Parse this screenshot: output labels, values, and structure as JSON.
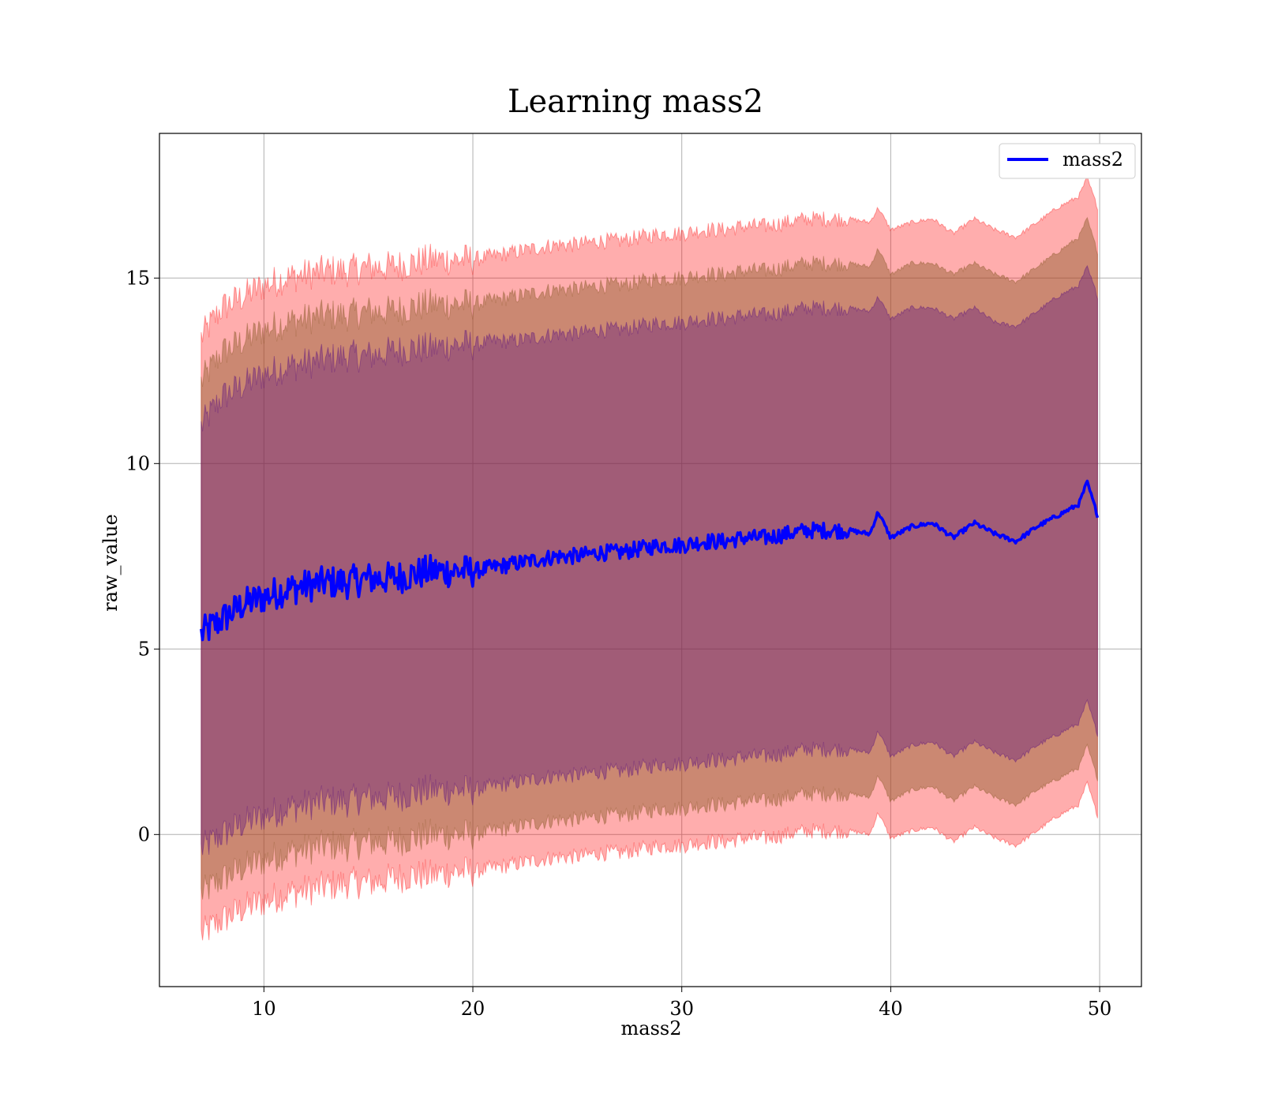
{
  "chart_data": {
    "type": "area",
    "title": "Learning mass2",
    "xlabel": "mass2",
    "ylabel": "raw_value",
    "xlim": [
      5,
      52
    ],
    "ylim": [
      -4.1,
      18.9
    ],
    "xticks": [
      10,
      20,
      30,
      40,
      50
    ],
    "yticks": [
      0,
      5,
      10,
      15
    ],
    "grid": true,
    "legend": {
      "position": "top-right",
      "entries": [
        "mass2"
      ]
    },
    "colors": {
      "line": "#0000ff",
      "band_outer": "#ff0000",
      "band_middle": "#8b5a2b",
      "band_inner": "#4b0082"
    },
    "x_range": [
      7.0,
      49.9
    ],
    "series": [
      {
        "name": "mass2",
        "x": [
          7.0,
          8.0,
          9.0,
          10.0,
          11.0,
          12.0,
          13.0,
          14.0,
          15.0,
          16.0,
          17.0,
          18.0,
          19.0,
          20.0,
          21.0,
          22.0,
          23.0,
          24.0,
          25.0,
          26.0,
          27.0,
          28.0,
          29.0,
          30.0,
          31.0,
          32.0,
          33.0,
          34.0,
          35.0,
          36.0,
          37.0,
          38.0,
          39.0,
          39.4,
          40.0,
          41.0,
          42.0,
          43.0,
          44.0,
          45.0,
          46.0,
          47.0,
          48.0,
          49.0,
          49.4,
          49.9
        ],
        "y": [
          5.4,
          5.8,
          6.2,
          6.4,
          6.6,
          6.7,
          6.8,
          6.8,
          6.9,
          6.9,
          7.0,
          7.1,
          7.1,
          7.1,
          7.2,
          7.3,
          7.4,
          7.5,
          7.5,
          7.6,
          7.6,
          7.7,
          7.8,
          7.8,
          7.9,
          7.9,
          8.0,
          8.0,
          8.1,
          8.2,
          8.2,
          8.2,
          8.1,
          8.7,
          8.0,
          8.3,
          8.4,
          8.0,
          8.4,
          8.1,
          7.9,
          8.3,
          8.6,
          8.9,
          9.5,
          8.6
        ],
        "upper_inner": [
          11.0,
          11.8,
          12.1,
          12.4,
          12.6,
          12.7,
          12.8,
          12.9,
          12.9,
          13.0,
          13.1,
          13.1,
          13.2,
          13.2,
          13.3,
          13.3,
          13.4,
          13.5,
          13.5,
          13.6,
          13.6,
          13.7,
          13.8,
          13.8,
          13.9,
          13.9,
          14.0,
          14.0,
          14.1,
          14.2,
          14.2,
          14.2,
          14.1,
          14.5,
          13.9,
          14.2,
          14.2,
          13.9,
          14.2,
          13.8,
          13.7,
          14.1,
          14.5,
          14.8,
          15.3,
          14.5
        ],
        "lower_inner": [
          -0.4,
          0.0,
          0.3,
          0.5,
          0.7,
          0.8,
          0.9,
          0.9,
          1.0,
          1.0,
          1.1,
          1.2,
          1.2,
          1.2,
          1.3,
          1.4,
          1.5,
          1.6,
          1.6,
          1.7,
          1.7,
          1.8,
          1.9,
          1.9,
          2.0,
          2.0,
          2.1,
          2.1,
          2.2,
          2.3,
          2.3,
          2.3,
          2.2,
          2.8,
          2.1,
          2.4,
          2.5,
          2.1,
          2.5,
          2.2,
          2.0,
          2.4,
          2.7,
          3.0,
          3.6,
          2.7
        ],
        "upper_middle": [
          12.2,
          13.0,
          13.3,
          13.6,
          13.8,
          13.9,
          14.0,
          14.0,
          14.1,
          14.1,
          14.2,
          14.3,
          14.3,
          14.3,
          14.4,
          14.5,
          14.6,
          14.7,
          14.7,
          14.8,
          14.8,
          14.9,
          15.0,
          15.0,
          15.1,
          15.1,
          15.2,
          15.2,
          15.3,
          15.4,
          15.4,
          15.4,
          15.3,
          15.8,
          15.1,
          15.4,
          15.4,
          15.1,
          15.4,
          15.1,
          14.9,
          15.3,
          15.7,
          16.1,
          16.6,
          15.7
        ],
        "lower_middle": [
          -1.6,
          -1.2,
          -0.9,
          -0.7,
          -0.5,
          -0.4,
          -0.3,
          -0.3,
          -0.2,
          -0.2,
          -0.1,
          0.0,
          0.0,
          0.0,
          0.1,
          0.2,
          0.3,
          0.4,
          0.4,
          0.5,
          0.5,
          0.6,
          0.7,
          0.7,
          0.8,
          0.8,
          0.9,
          0.9,
          1.0,
          1.1,
          1.1,
          1.1,
          1.0,
          1.6,
          0.9,
          1.2,
          1.3,
          0.9,
          1.3,
          1.0,
          0.8,
          1.2,
          1.5,
          1.8,
          2.4,
          1.5
        ],
        "upper_outer": [
          13.4,
          14.2,
          14.5,
          14.8,
          15.0,
          15.1,
          15.2,
          15.2,
          15.3,
          15.3,
          15.4,
          15.5,
          15.5,
          15.5,
          15.6,
          15.7,
          15.8,
          15.9,
          15.9,
          16.0,
          16.0,
          16.1,
          16.2,
          16.2,
          16.3,
          16.3,
          16.4,
          16.4,
          16.5,
          16.6,
          16.6,
          16.6,
          16.5,
          16.9,
          16.3,
          16.5,
          16.6,
          16.2,
          16.6,
          16.3,
          16.1,
          16.5,
          16.9,
          17.2,
          17.7,
          16.9
        ],
        "lower_outer": [
          -2.7,
          -2.3,
          -2.0,
          -1.8,
          -1.6,
          -1.5,
          -1.4,
          -1.3,
          -1.3,
          -1.2,
          -1.1,
          -1.1,
          -1.0,
          -1.0,
          -0.9,
          -0.8,
          -0.7,
          -0.6,
          -0.6,
          -0.5,
          -0.5,
          -0.4,
          -0.3,
          -0.3,
          -0.2,
          -0.2,
          -0.1,
          -0.1,
          0.0,
          0.1,
          0.1,
          0.1,
          0.0,
          0.6,
          -0.1,
          0.1,
          0.2,
          -0.2,
          0.2,
          -0.1,
          -0.3,
          0.1,
          0.5,
          0.8,
          1.4,
          0.5
        ]
      }
    ]
  }
}
